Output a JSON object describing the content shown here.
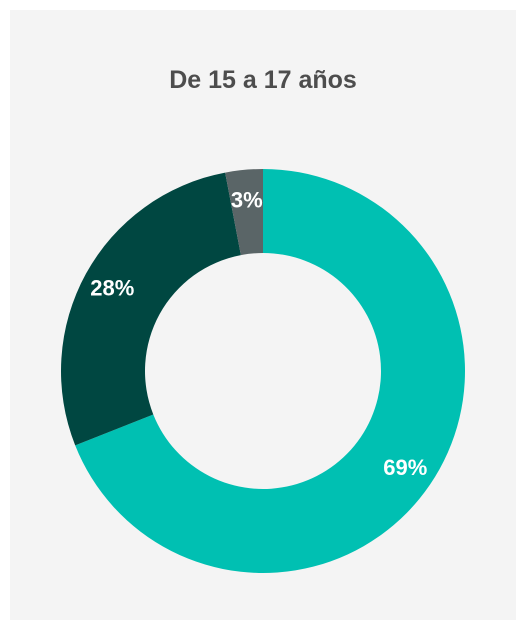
{
  "chart_data": {
    "type": "pie",
    "variant": "donut",
    "title": "De 15 a 17 años",
    "categories": [
      "",
      "",
      ""
    ],
    "values": [
      69,
      28,
      3
    ],
    "labels": [
      "69%",
      "28%",
      "3%"
    ],
    "colors": [
      "#00c0b2",
      "#004741",
      "#5a6567"
    ],
    "legend": "none",
    "start_angle": "top, clockwise"
  },
  "colors": {
    "background": "#f4f4f4",
    "title": "#4d4d4d",
    "label": "#ffffff"
  }
}
